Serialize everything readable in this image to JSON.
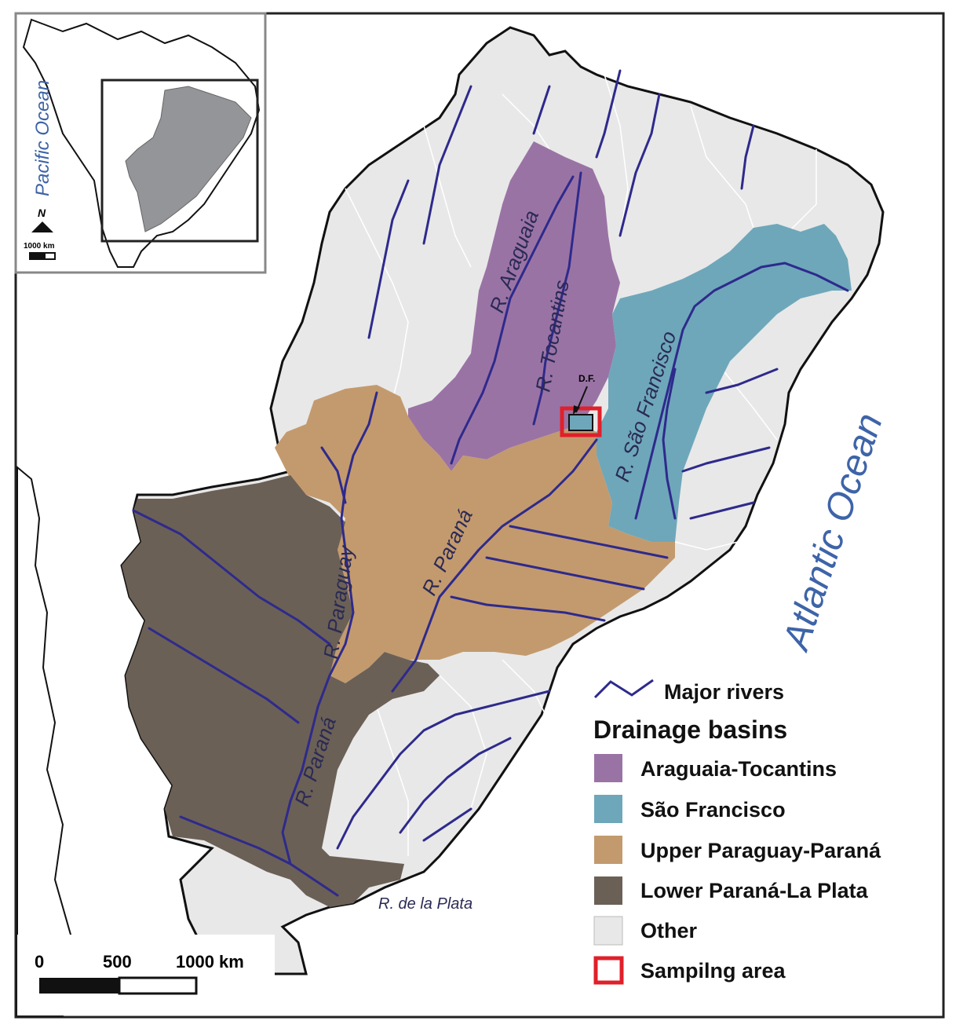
{
  "oceans": {
    "atlantic": "Atlantic Ocean",
    "pacific": "Pacific Ocean"
  },
  "rivers": {
    "araguaia": "R. Araguaia",
    "tocantins": "R. Tocantins",
    "sao_francisco": "R. São Francisco",
    "parana_upper": "R. Paraná",
    "paraguay": "R. Paraguay",
    "parana_lower": "R. Paraná",
    "la_plata": "R. de la Plata"
  },
  "df_label": "D.F.",
  "inset": {
    "north": "N",
    "scale": "1000 km"
  },
  "scalebar": {
    "labels": [
      "0",
      "500",
      "1000 km"
    ]
  },
  "legend": {
    "major_rivers": "Major rivers",
    "heading": "Drainage basins",
    "items": [
      {
        "label": "Araguaia-Tocantins",
        "color": "#9a73a5"
      },
      {
        "label": "São Francisco",
        "color": "#6ea7ba"
      },
      {
        "label": "Upper Paraguay-Paraná",
        "color": "#c39a6e"
      },
      {
        "label": "Lower Paraná-La Plata",
        "color": "#6b6056"
      },
      {
        "label": "Other",
        "color": "#e8e8e8"
      },
      {
        "label": "Sampilng area",
        "color": "#e0202a"
      }
    ]
  },
  "colors": {
    "river": "#2e2a8c",
    "outline": "#111111",
    "frame": "#222222",
    "ocean_text": "#3e64a8"
  }
}
